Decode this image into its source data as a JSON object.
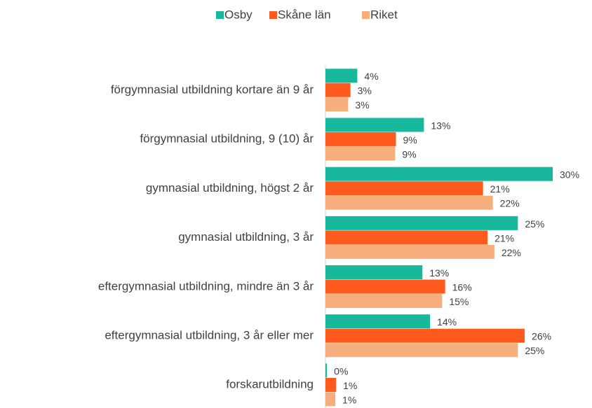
{
  "chart_data": {
    "type": "bar",
    "orientation": "horizontal",
    "categories": [
      "förgymnasial utbildning kortare än 9 år",
      "förgymnasial utbildning, 9 (10) år",
      "gymnasial utbildning, högst 2 år",
      "gymnasial utbildning, 3 år",
      "eftergymnasial utbildning, mindre än 3 år",
      "eftergymnasial utbildning, 3 år eller mer",
      "forskarutbildning"
    ],
    "series": [
      {
        "name": "Osby",
        "color": "#17b89c",
        "values": [
          4.2,
          13.0,
          30.0,
          25.4,
          12.8,
          13.8,
          0.2
        ],
        "value_labels": [
          "4%",
          "13%",
          "30%",
          "25%",
          "13%",
          "14%",
          "0%"
        ]
      },
      {
        "name": "Skåne län",
        "color": "#fe5a1e",
        "values": [
          3.3,
          9.3,
          20.8,
          21.4,
          15.8,
          26.3,
          1.4
        ],
        "value_labels": [
          "3%",
          "9%",
          "21%",
          "21%",
          "16%",
          "26%",
          "1%"
        ]
      },
      {
        "name": "Riket",
        "color": "#f6ae7c",
        "values": [
          3.0,
          9.2,
          22.1,
          22.3,
          15.4,
          25.4,
          1.3
        ],
        "value_labels": [
          "3%",
          "9%",
          "22%",
          "22%",
          "15%",
          "25%",
          "1%"
        ]
      }
    ],
    "xlim": [
      0,
      35
    ],
    "legend": "top"
  }
}
